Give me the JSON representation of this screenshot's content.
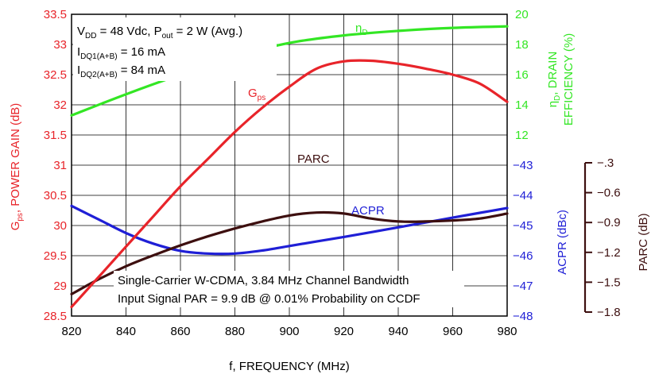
{
  "chart_data": {
    "type": "line",
    "x_axis": {
      "label": "f, FREQUENCY (MHz)",
      "range": [
        820,
        980
      ],
      "ticks": [
        "820",
        "840",
        "860",
        "880",
        "900",
        "920",
        "940",
        "960",
        "980"
      ]
    },
    "y_axes": {
      "gain": {
        "label_main": "POWER GAIN (dB)",
        "label_sym": "G",
        "label_sub": "ps",
        "range": [
          28.5,
          33.5
        ],
        "ticks": [
          "33.5",
          "33",
          "32.5",
          "32",
          "31.5",
          "31",
          "30.5",
          "30",
          "29.5",
          "29",
          "28.5"
        ],
        "color": "#e8242a"
      },
      "efficiency": {
        "label_line1": "η",
        "label_line1_sub": "D",
        "label_line1_rest": ", DRAIN",
        "label_line2": "EFFICIENCY (%)",
        "range": [
          0,
          20
        ],
        "ticks": [
          "20",
          "18",
          "16",
          "14",
          "12"
        ],
        "color": "#33e624"
      },
      "acpr": {
        "label": "ACPR (dBc)",
        "range": [
          -48,
          -43
        ],
        "ticks": [
          "−43",
          "−44",
          "−45",
          "−46",
          "−47",
          "−48"
        ],
        "color": "#1f1fd6"
      },
      "parc": {
        "label": "PARC (dB)",
        "range": [
          -1.8,
          -0.3
        ],
        "ticks": [
          "−.3",
          "−0.6",
          "−0.9",
          "−1.2",
          "−1.5",
          "−1.8"
        ],
        "color": "#3d0f0f"
      }
    },
    "series": [
      {
        "name": "ηD",
        "axis": "efficiency",
        "color": "#33e624",
        "x": [
          820,
          840,
          860,
          880,
          900,
          920,
          940,
          960,
          980
        ],
        "values": [
          13.3,
          14.7,
          16.0,
          17.2,
          18.1,
          18.6,
          18.9,
          19.1,
          19.2
        ]
      },
      {
        "name": "Gps",
        "axis": "gain",
        "color": "#e8242a",
        "x": [
          820,
          830,
          840,
          850,
          860,
          870,
          880,
          890,
          900,
          910,
          920,
          930,
          940,
          950,
          960,
          970,
          980
        ],
        "values": [
          28.65,
          29.15,
          29.65,
          30.15,
          30.65,
          31.1,
          31.55,
          31.95,
          32.3,
          32.6,
          32.72,
          32.73,
          32.68,
          32.6,
          32.5,
          32.35,
          32.05
        ]
      },
      {
        "name": "PARC",
        "axis": "parc",
        "color": "#3d0f0f",
        "x": [
          820,
          830,
          840,
          850,
          860,
          870,
          880,
          890,
          900,
          910,
          920,
          930,
          940,
          950,
          960,
          970,
          980
        ],
        "values": [
          -1.62,
          -1.47,
          -1.34,
          -1.23,
          -1.13,
          -1.04,
          -0.96,
          -0.89,
          -0.83,
          -0.8,
          -0.81,
          -0.86,
          -0.89,
          -0.89,
          -0.88,
          -0.86,
          -0.81
        ]
      },
      {
        "name": "ACPR",
        "axis": "acpr",
        "color": "#1f1fd6",
        "x": [
          820,
          830,
          840,
          850,
          860,
          870,
          880,
          890,
          900,
          910,
          920,
          930,
          940,
          950,
          960,
          970,
          980
        ],
        "values": [
          -44.35,
          -44.8,
          -45.25,
          -45.6,
          -45.84,
          -45.93,
          -45.93,
          -45.83,
          -45.68,
          -45.53,
          -45.38,
          -45.22,
          -45.06,
          -44.9,
          -44.74,
          -44.58,
          -44.42
        ]
      }
    ],
    "series_labels": {
      "eta": {
        "sym": "η",
        "sub": "D"
      },
      "gps": {
        "sym": "G",
        "sub": "ps"
      },
      "parc": "PARC",
      "acpr": "ACPR"
    },
    "conditions": {
      "line1": {
        "a": "V",
        "a_sub": "DD",
        "b": " = 48 Vdc, P",
        "b_sub": "out",
        "c": " = 2 W (Avg.)"
      },
      "line2": {
        "a": "I",
        "a_sub": "DQ1(A+B)",
        "b": " = 16 mA"
      },
      "line3": {
        "a": "I",
        "a_sub": "DQ2(A+B)",
        "b": " = 84 mA"
      }
    },
    "notes": [
      "Single-Carrier W-CDMA, 3.84 MHz Channel Bandwidth",
      "Input Signal PAR = 9.9 dB @ 0.01% Probability on CCDF"
    ],
    "grid": true
  }
}
